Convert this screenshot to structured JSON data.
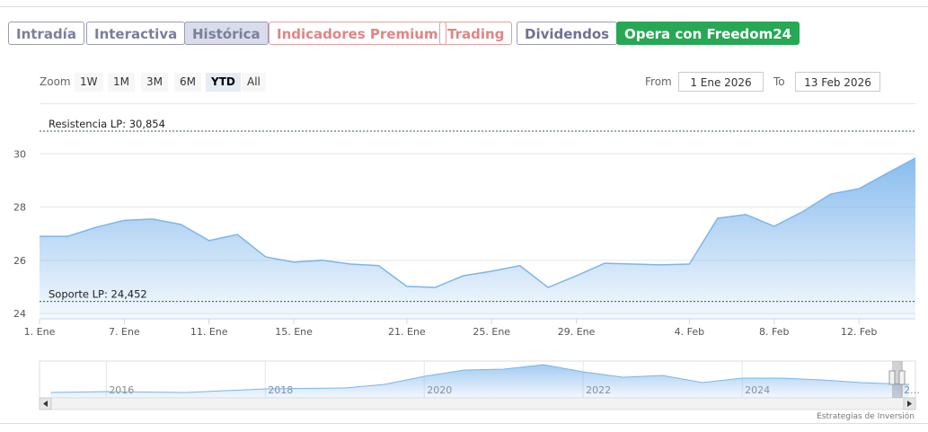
{
  "tabs": [
    "Intradía",
    "Interactiva",
    "Histórica",
    "Indicadores Premium",
    "Trading",
    "Dividendos",
    "Opera con Freedom24"
  ],
  "zoom": {
    "label": "Zoom",
    "buttons": [
      "1W",
      "1M",
      "3M",
      "6M",
      "YTD",
      "All"
    ]
  },
  "range": {
    "from_label": "From",
    "from": "1 Ene 2026",
    "to_label": "To",
    "to": "13 Feb 2026"
  },
  "chart_data": [
    {
      "type": "area",
      "color": "#7cb5ec",
      "categories": [
        "1. Ene",
        null,
        null,
        "7. Ene",
        null,
        null,
        "11. Ene",
        null,
        null,
        "15. Ene",
        null,
        null,
        null,
        "21. Ene",
        null,
        null,
        "25. Ene",
        null,
        null,
        "29. Ene",
        null,
        null,
        null,
        "4. Feb",
        null,
        null,
        "8. Feb",
        null,
        null,
        "12. Feb",
        null,
        null
      ],
      "values": [
        26.9,
        26.9,
        27.24,
        27.5,
        27.55,
        27.35,
        26.74,
        26.97,
        26.13,
        25.93,
        26.0,
        25.86,
        25.8,
        25.02,
        24.98,
        25.42,
        25.59,
        25.8,
        24.98,
        25.42,
        25.89,
        25.86,
        25.83,
        25.86,
        27.58,
        27.72,
        27.28,
        27.82,
        28.49,
        28.69,
        29.27,
        29.84
      ],
      "ylim": [
        23.8,
        31.9
      ],
      "yticks": [
        24,
        26,
        28,
        30
      ],
      "grid": true,
      "reference_lines": [
        {
          "label": "Resistencia LP: 30,854",
          "value": 30.854,
          "color": "#2f5f2f"
        },
        {
          "label": "Soporte LP: 24,452",
          "value": 24.452,
          "color": "#2f5f2f"
        }
      ]
    },
    {
      "type": "area",
      "color": "#7cb5ec",
      "x": [
        2015.3,
        2016,
        2017,
        2018,
        2019,
        2019.5,
        2020,
        2020.5,
        2021,
        2021.5,
        2022,
        2022.5,
        2023,
        2023.5,
        2024,
        2024.5,
        2025,
        2025.5,
        2026.1
      ],
      "values": [
        5.9,
        6.8,
        5.9,
        9.8,
        10.7,
        14.6,
        23.4,
        30.2,
        31.2,
        36.1,
        28.3,
        22.4,
        24.4,
        16.6,
        21.5,
        21.5,
        19.5,
        16.6,
        14.6
      ],
      "ylim": [
        0,
        40
      ],
      "xlim": [
        2015.16,
        2026.18
      ],
      "xticks": [
        2016,
        2018,
        2020,
        2022,
        2024,
        {
          "value": 2026,
          "label": "2…"
        }
      ]
    }
  ],
  "credit": "Estrategias de Inversión"
}
